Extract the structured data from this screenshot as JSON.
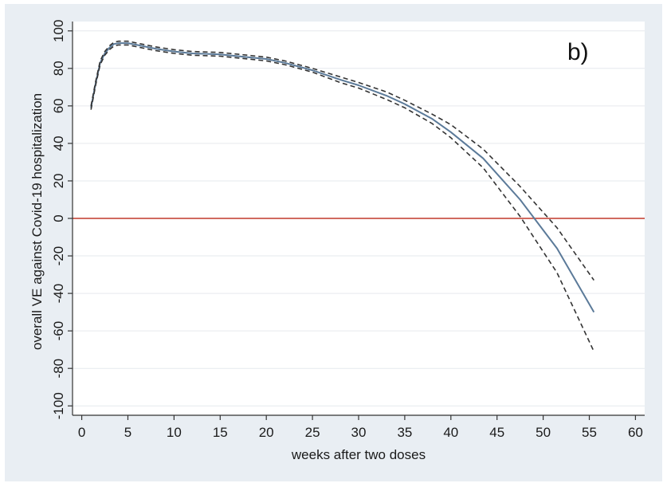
{
  "chart_data": {
    "type": "line",
    "title": "",
    "panel_label": "b)",
    "xlabel": "weeks after two doses",
    "ylabel": "overall VE against Covid-19 hospitalization",
    "xlim": [
      -1,
      61
    ],
    "ylim": [
      -105,
      105
    ],
    "xticks": [
      0,
      5,
      10,
      15,
      20,
      25,
      30,
      35,
      40,
      45,
      50,
      55,
      60
    ],
    "yticks": [
      -100,
      -80,
      -60,
      -40,
      -20,
      0,
      20,
      40,
      60,
      80,
      100
    ],
    "grid": "horizontal",
    "legend": "none",
    "colors": {
      "estimate": "#5b7a99",
      "ci": "#333333",
      "reference": "#c0392b",
      "grid": "#e6e9ee",
      "axis": "#333333"
    },
    "reference_line": {
      "y": 0
    },
    "series": [
      {
        "role": "estimate",
        "style": "solid",
        "x": [
          1,
          1.5,
          2,
          2.5,
          3,
          3.5,
          4,
          5,
          6,
          8,
          10,
          12,
          15,
          18,
          20,
          22,
          25,
          28,
          30,
          33,
          35,
          38,
          40,
          43.5,
          47.5,
          51.5,
          55.5
        ],
        "y": [
          59,
          72,
          83,
          88,
          91,
          93,
          93.5,
          93.5,
          92.5,
          90.5,
          89,
          88,
          87.5,
          86,
          85,
          83,
          79,
          74,
          71,
          65.5,
          61,
          53,
          46,
          32,
          10,
          -16,
          -50
        ]
      },
      {
        "role": "upper-ci",
        "style": "dashed",
        "x": [
          1,
          1.5,
          2,
          2.5,
          3,
          3.5,
          4,
          5,
          6,
          8,
          10,
          12,
          15,
          18,
          20,
          22,
          25,
          28,
          30,
          33,
          35,
          38,
          40,
          43.5,
          47.5,
          51.5,
          55.5
        ],
        "y": [
          60,
          73,
          84,
          89,
          92,
          94,
          94.5,
          94.5,
          93.5,
          91.5,
          90,
          89,
          88.5,
          87,
          86,
          84,
          80,
          75.5,
          72.5,
          67.5,
          63,
          55.5,
          50,
          37,
          17,
          -5,
          -33
        ]
      },
      {
        "role": "lower-ci",
        "style": "dashed",
        "x": [
          1,
          1.5,
          2,
          2.5,
          3,
          3.5,
          4,
          5,
          6,
          8,
          10,
          12,
          15,
          18,
          20,
          22,
          25,
          28,
          30,
          33,
          35,
          38,
          40,
          43.5,
          47.5,
          51.5,
          55.5
        ],
        "y": [
          58,
          71,
          82,
          87,
          90,
          92,
          92.5,
          92.5,
          91.5,
          89.5,
          88,
          87,
          86.5,
          85,
          84,
          82,
          78,
          72.5,
          69.5,
          63.5,
          59,
          50.5,
          43,
          27,
          1,
          -29,
          -71
        ]
      }
    ]
  }
}
